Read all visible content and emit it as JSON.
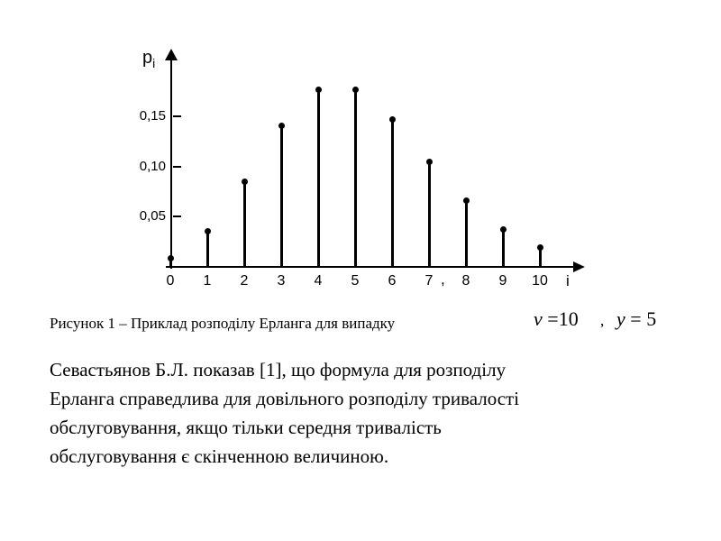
{
  "caption": {
    "text": "Рисунок 1 – Приклад розподілу Ерланга для випадку",
    "formulas": [
      {
        "lhs": "v",
        "equals": "=",
        "rhs": "10"
      },
      {
        "lhs": "y",
        "equals": "=",
        "rhs": "5"
      }
    ],
    "separator": ","
  },
  "paragraph": {
    "lines": [
      "Севастьянов Б.Л. показав [1], що формула для розподілу",
      "Ерланга справедлива для довільного розподілу тривалості",
      "обслуговування, якщо тільки середня тривалість",
      "обслуговування є скінченною величиною."
    ]
  },
  "chart_data": {
    "type": "stem",
    "title": "",
    "xlabel": "i",
    "ylabel_base": "p",
    "ylabel_sub": "i",
    "x": [
      0,
      1,
      2,
      3,
      4,
      5,
      6,
      7,
      8,
      9,
      10
    ],
    "values": [
      0.007,
      0.034,
      0.084,
      0.14,
      0.176,
      0.176,
      0.146,
      0.104,
      0.065,
      0.036,
      0.018
    ],
    "x_tick_labels": [
      "0",
      "1",
      "2",
      "3",
      "4",
      "5",
      "6",
      "7",
      "8",
      "9",
      "10"
    ],
    "y_ticks": [
      {
        "label": "0,05",
        "value": 0.05
      },
      {
        "label": "0,10",
        "value": 0.1
      },
      {
        "label": "0,15",
        "value": 0.15
      }
    ],
    "axis_comma": ",",
    "ylim": [
      0,
      0.19
    ],
    "grid": false,
    "legend": false,
    "color": "#000000"
  }
}
